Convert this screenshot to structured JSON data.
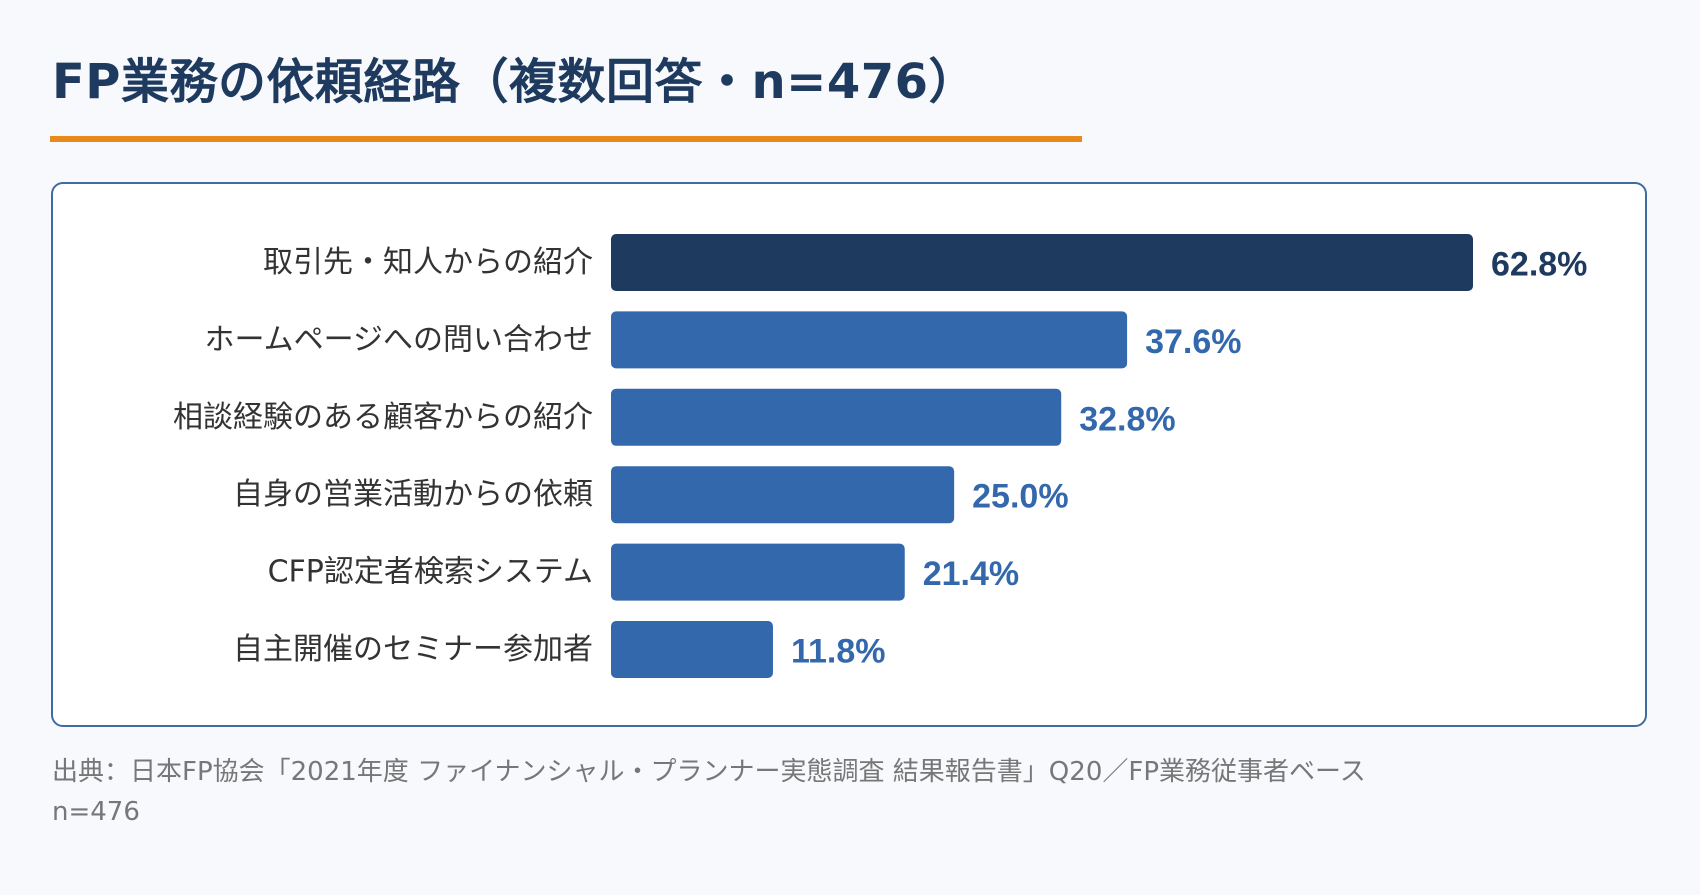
{
  "title": "FP業務の依頼経路（複数回答・n=476）",
  "source": {
    "line1": "出典：日本FP協会「2021年度 ファイナンシャル・プランナー実態調査 結果報告書」Q20／FP業務従事者ベース",
    "line2": "n=476"
  },
  "colors": {
    "title": "#1f3a5f",
    "underline": "#e8891c",
    "highlight_bar": "#1e3a5f",
    "bar": "#3468ad",
    "card_border": "#3e6aa6"
  },
  "chart_data": {
    "type": "bar",
    "orientation": "horizontal",
    "categories": [
      "取引先・知人からの紹介",
      "ホームページへの問い合わせ",
      "相談経験のある顧客からの紹介",
      "自身の営業活動からの依頼",
      "CFP認定者検索システム",
      "自主開催のセミナー参加者"
    ],
    "values": [
      62.8,
      37.6,
      32.8,
      25.0,
      21.4,
      11.8
    ],
    "value_labels": [
      "62.8%",
      "37.6%",
      "32.8%",
      "25.0%",
      "21.4%",
      "11.8%"
    ],
    "unit": "%",
    "highlight_index": 0,
    "xlim": [
      0,
      62.8
    ],
    "grid": false,
    "legend": "none"
  }
}
